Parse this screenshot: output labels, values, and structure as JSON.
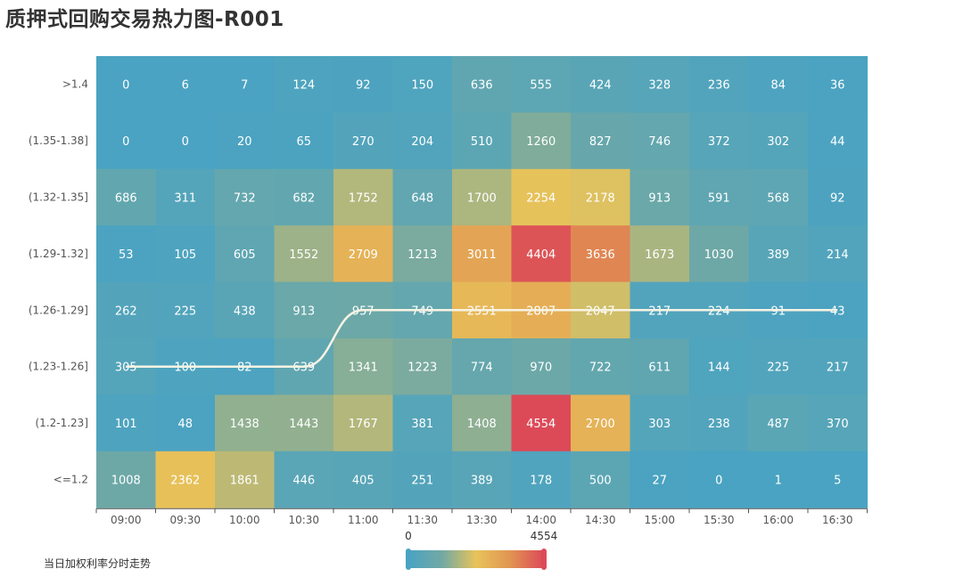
{
  "title": "质押式回购交易热力图-R001",
  "trend_label": "当日加权利率分时走势",
  "colors": {
    "scale": [
      "#4aa3c2",
      "#72a9a3",
      "#e8c35a",
      "#e19552",
      "#dc4a58"
    ],
    "trend_line": "#f7f3e4",
    "axis": "#555555"
  },
  "chart_data": {
    "type": "heatmap",
    "title": "质押式回购交易热力图-R001",
    "x_categories": [
      "09:00",
      "09:30",
      "10:00",
      "10:30",
      "11:00",
      "11:30",
      "13:30",
      "14:00",
      "14:30",
      "15:00",
      "15:30",
      "16:00",
      "16:30"
    ],
    "y_categories": [
      ">1.4",
      "(1.35-1.38]",
      "(1.32-1.35]",
      "(1.29-1.32]",
      "(1.26-1.29]",
      "(1.23-1.26]",
      "(1.2-1.23]",
      "<=1.2"
    ],
    "values": [
      [
        0,
        6,
        7,
        124,
        92,
        150,
        636,
        555,
        424,
        328,
        236,
        84,
        36
      ],
      [
        0,
        0,
        20,
        65,
        270,
        204,
        510,
        1260,
        827,
        746,
        372,
        302,
        44
      ],
      [
        686,
        311,
        732,
        682,
        1752,
        648,
        1700,
        2254,
        2178,
        913,
        591,
        568,
        92
      ],
      [
        53,
        105,
        605,
        1552,
        2709,
        1213,
        3011,
        4404,
        3636,
        1673,
        1030,
        389,
        214
      ],
      [
        262,
        225,
        438,
        913,
        957,
        749,
        2551,
        2807,
        2047,
        217,
        224,
        91,
        43
      ],
      [
        305,
        100,
        82,
        639,
        1341,
        1223,
        774,
        970,
        722,
        611,
        144,
        225,
        217
      ],
      [
        101,
        48,
        1438,
        1443,
        1767,
        381,
        1408,
        4554,
        2700,
        303,
        238,
        487,
        370
      ],
      [
        1008,
        2362,
        1861,
        446,
        405,
        251,
        389,
        178,
        500,
        27,
        0,
        1,
        5
      ]
    ],
    "visual_map": {
      "min": 0,
      "max": 4554,
      "min_label": "0",
      "max_label": "4554"
    },
    "trend_series": {
      "name": "当日加权利率分时走势",
      "y_category_index": [
        5,
        5,
        5,
        5,
        4,
        4,
        4,
        4,
        4,
        4,
        4,
        4,
        4
      ]
    }
  }
}
